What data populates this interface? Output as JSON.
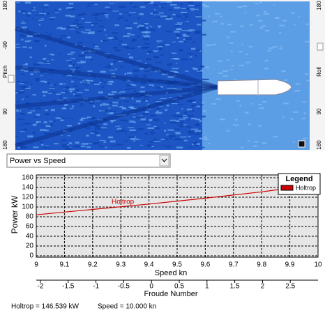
{
  "wave_view": {
    "left_scale": [
      "180",
      "-90",
      "Pitch",
      "90",
      "180"
    ],
    "right_scale": [
      "180",
      "Roll",
      "90",
      "180"
    ]
  },
  "selector": {
    "value": "Power vs Speed"
  },
  "chart_data": {
    "type": "line",
    "y_label": "Power  kW",
    "x_label": "Speed  kn",
    "x2_label": "Froude Number",
    "x": [
      9,
      9.2,
      9.4,
      9.6,
      9.8,
      10
    ],
    "series": [
      {
        "name": "Holtrop",
        "color": "#cc0000",
        "values": [
          84,
          95,
          106,
          118,
          131,
          146.5
        ]
      }
    ],
    "line_label": "Holtrop",
    "legend_title": "Legend",
    "xlim": [
      9,
      10
    ],
    "xticks": [
      9,
      9.1,
      9.2,
      9.3,
      9.4,
      9.5,
      9.6,
      9.7,
      9.8,
      9.9,
      10
    ],
    "ylim": [
      0,
      160
    ],
    "yticks": [
      0,
      20,
      40,
      60,
      80,
      100,
      120,
      140,
      160
    ],
    "x2lim": [
      -2.075,
      3
    ],
    "x2ticks": [
      -2,
      -1.5,
      -1,
      -0.5,
      0,
      0.5,
      1,
      1.5,
      2,
      2.5
    ],
    "grid": true
  },
  "status": [
    "Holtrop = 146.539 kW",
    "Speed = 10.000 kn"
  ]
}
